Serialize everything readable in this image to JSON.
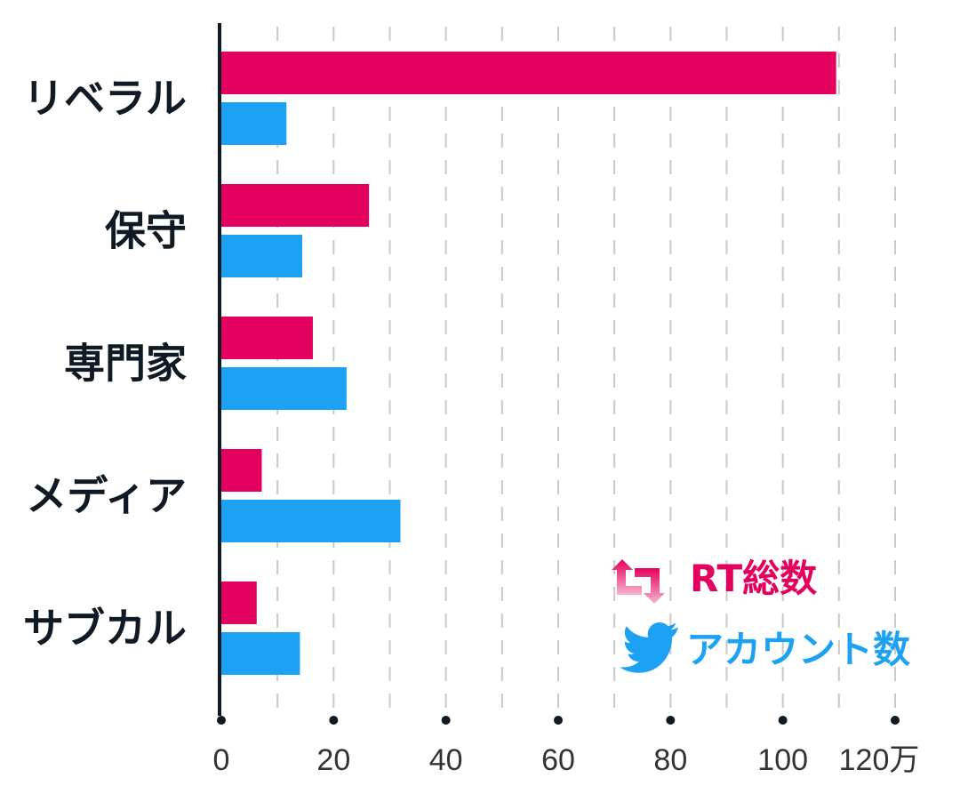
{
  "chart_data": {
    "type": "bar",
    "orientation": "horizontal",
    "categories": [
      "リベラル",
      "保守",
      "専門家",
      "メディア",
      "サブカル"
    ],
    "series": [
      {
        "name": "RT総数",
        "color": "#e4005e",
        "values": [
          109.5,
          26.3,
          16.3,
          7.2,
          6.3
        ]
      },
      {
        "name": "アカウント数",
        "color": "#1da1f2",
        "values": [
          11.6,
          14.4,
          22.3,
          31.9,
          14.0
        ]
      }
    ],
    "x_ticks": [
      {
        "value": 0,
        "label": "0"
      },
      {
        "value": 20,
        "label": "20"
      },
      {
        "value": 40,
        "label": "40"
      },
      {
        "value": 60,
        "label": "60"
      },
      {
        "value": 80,
        "label": "80"
      },
      {
        "value": 100,
        "label": "100"
      },
      {
        "value": 120,
        "label": "120万"
      }
    ],
    "xlim": [
      0,
      120
    ],
    "grid": "vertical dashed",
    "legend_position": "bottom-right",
    "legend_icons": [
      "retweet-icon",
      "twitter-bird-icon"
    ]
  }
}
